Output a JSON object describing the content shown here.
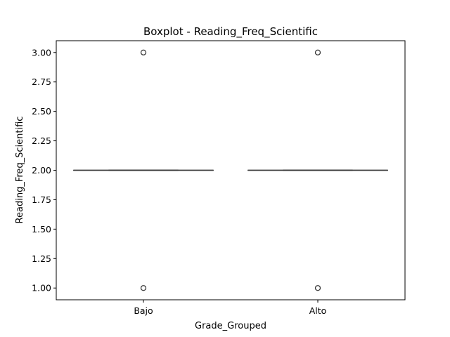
{
  "chart_data": {
    "type": "box",
    "title": "Boxplot - Reading_Freq_Scientific",
    "xlabel": "Grade_Grouped",
    "ylabel": "Reading_Freq_Scientific",
    "categories": [
      "Bajo",
      "Alto"
    ],
    "ylim": [
      0.9,
      3.1
    ],
    "yticks": [
      "1.00",
      "1.25",
      "1.50",
      "1.75",
      "2.00",
      "2.25",
      "2.50",
      "2.75",
      "3.00"
    ],
    "grid": false,
    "legend": "none",
    "boxes": [
      {
        "category": "Bajo",
        "q1": 2.0,
        "median": 2.0,
        "q3": 2.0,
        "whisker_low": 2.0,
        "whisker_high": 2.0,
        "outliers": [
          1.0,
          3.0
        ]
      },
      {
        "category": "Alto",
        "q1": 2.0,
        "median": 2.0,
        "q3": 2.0,
        "whisker_low": 2.0,
        "whisker_high": 2.0,
        "outliers": [
          1.0,
          3.0
        ]
      }
    ],
    "colors": {
      "box": "#3a3a3a",
      "outlier_edge": "#3a3a3a",
      "axis": "#000000"
    }
  }
}
